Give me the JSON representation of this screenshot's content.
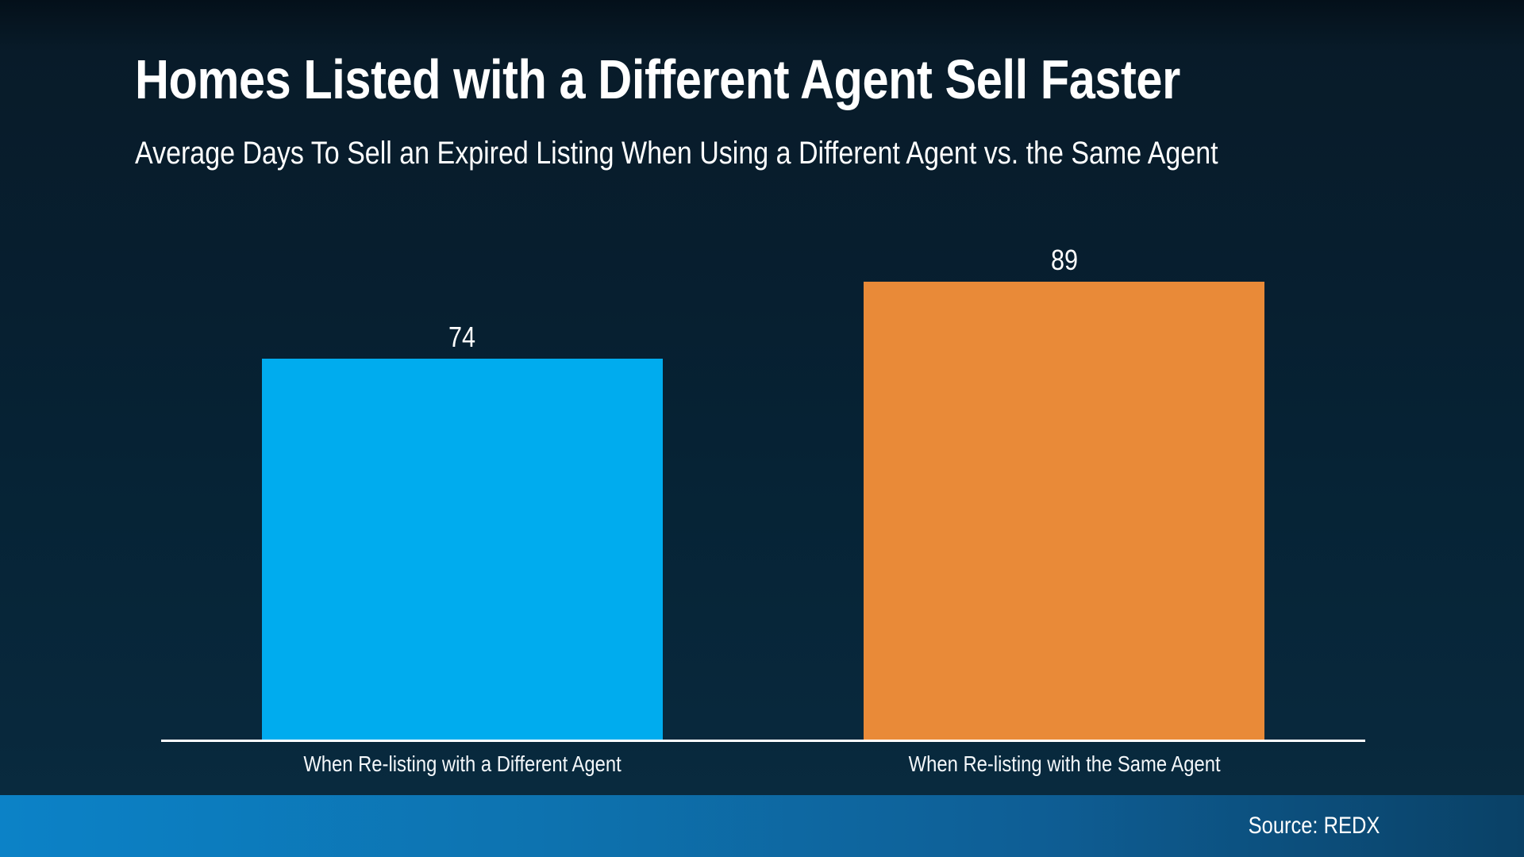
{
  "chart_data": {
    "type": "bar",
    "title": "Homes Listed with a Different Agent Sell Faster",
    "subtitle": "Average Days To Sell an Expired Listing When Using a Different Agent vs. the Same Agent",
    "categories": [
      "When Re-listing with a Different Agent",
      "When Re-listing with the Same Agent"
    ],
    "values": [
      74,
      89
    ],
    "value_labels": [
      "74",
      "89"
    ],
    "bar_colors": [
      "#00ACEE",
      "#E98A38"
    ],
    "ylim": [
      0,
      100
    ],
    "grid": false,
    "legend": false,
    "source": "Source: REDX"
  },
  "colors": {
    "background_top": "#04101a",
    "background_bottom": "#0a2c40",
    "bar_blue": "#00ACEE",
    "bar_orange": "#E98A38",
    "axis_line": "#FFFFFF",
    "footer_gradient_left": "#0C82C7",
    "footer_gradient_right": "#0A4166",
    "text": "#FFFFFF"
  }
}
